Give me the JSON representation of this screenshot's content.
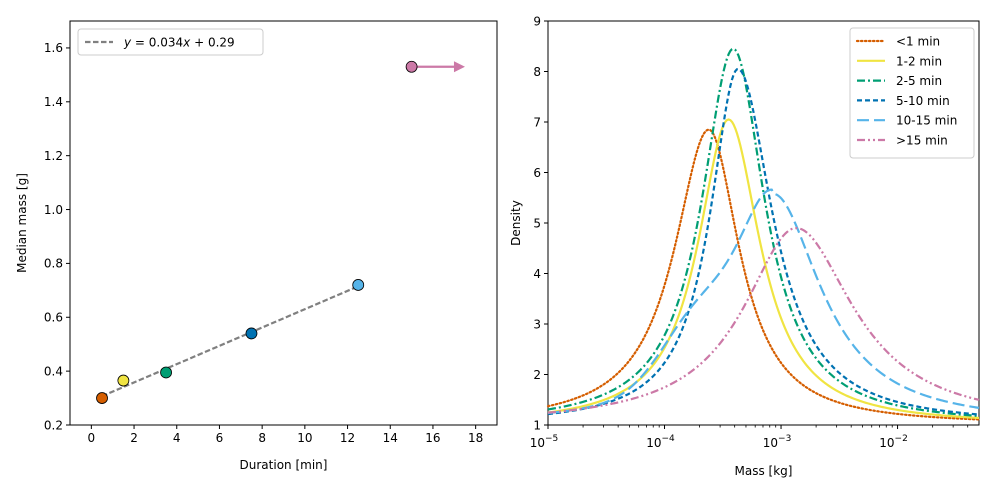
{
  "chart_data": [
    {
      "type": "scatter",
      "xlabel": "Duration [min]",
      "ylabel": "Median mass [g]",
      "xlim": [
        -1,
        19
      ],
      "ylim": [
        0.2,
        1.7
      ],
      "xticks": [
        0,
        2,
        4,
        6,
        8,
        10,
        12,
        14,
        16,
        18
      ],
      "yticks": [
        0.2,
        0.4,
        0.6,
        0.8,
        1.0,
        1.2,
        1.4,
        1.6
      ],
      "xtick_labels": [
        "0",
        "2",
        "4",
        "6",
        "8",
        "10",
        "12",
        "14",
        "16",
        "18"
      ],
      "ytick_labels": [
        "0.2",
        "0.4",
        "0.6",
        "0.8",
        "1.0",
        "1.2",
        "1.4",
        "1.6"
      ],
      "points": [
        {
          "x": 0.5,
          "y": 0.3,
          "color": "#d55e00"
        },
        {
          "x": 1.5,
          "y": 0.365,
          "color": "#f0e442"
        },
        {
          "x": 3.5,
          "y": 0.395,
          "color": "#009e73"
        },
        {
          "x": 7.5,
          "y": 0.54,
          "color": "#0072b2"
        },
        {
          "x": 12.5,
          "y": 0.72,
          "color": "#56b4e9"
        },
        {
          "x": 15.0,
          "y": 1.53,
          "color": "#cc79a7"
        }
      ],
      "arrow": {
        "from_x": 15.0,
        "to_x": 17.5,
        "y": 1.53,
        "color": "#cc79a7"
      },
      "fit": {
        "slope": 0.034,
        "intercept": 0.29,
        "x_range": [
          0.5,
          12.5
        ],
        "color": "#808080",
        "label": "y = 0.034x + 0.29",
        "label_prefix": "y",
        "label_rest": " = 0.034",
        "label_x": "x",
        "label_tail": " + 0.29"
      },
      "legend": "top-left"
    },
    {
      "type": "line",
      "xscale": "log",
      "xlabel": "Mass [kg]",
      "ylabel": "Density",
      "xlim": [
        1e-05,
        0.05
      ],
      "ylim": [
        1,
        9
      ],
      "yticks": [
        1,
        2,
        3,
        4,
        5,
        6,
        7,
        8,
        9
      ],
      "ytick_labels": [
        "1",
        "2",
        "3",
        "4",
        "5",
        "6",
        "7",
        "8",
        "9"
      ],
      "xticks_major": [
        1e-05,
        0.0001,
        0.001,
        0.01
      ],
      "xtick_labels": [
        {
          "base": "10",
          "exp": "−5"
        },
        {
          "base": "10",
          "exp": "−4"
        },
        {
          "base": "10",
          "exp": "−3"
        },
        {
          "base": "10",
          "exp": "−2"
        }
      ],
      "series": [
        {
          "name": "<1 min",
          "color": "#d55e00",
          "dash": "1.5,2.5",
          "lc": "round",
          "peak_log10": -3.62,
          "peak_y": 6.85,
          "sigma_left": 0.36,
          "sigma_right": 0.32
        },
        {
          "name": "1-2 min",
          "color": "#f0e442",
          "dash": "",
          "lc": "butt",
          "peak_log10": -3.45,
          "peak_y": 7.05,
          "sigma_left": 0.32,
          "sigma_right": 0.33
        },
        {
          "name": "2-5 min",
          "color": "#009e73",
          "dash": "8,3,2,3",
          "lc": "butt",
          "peak_log10": -3.41,
          "peak_y": 8.45,
          "sigma_left": 0.33,
          "sigma_right": 0.33
        },
        {
          "name": "5-10 min",
          "color": "#0072b2",
          "dash": "5,3",
          "lc": "butt",
          "peak_log10": -3.37,
          "peak_y": 8.05,
          "sigma_left": 0.29,
          "sigma_right": 0.36
        },
        {
          "name": "10-15 min",
          "color": "#56b4e9",
          "dash": "12,5",
          "lc": "butt",
          "peak_log10": -3.07,
          "peak_y": 5.58,
          "sigma_left": 0.45,
          "sigma_right": 0.5,
          "shoulder": {
            "log10": -3.75,
            "y": 1.0,
            "sigma": 0.3
          }
        },
        {
          "name": ">15 min",
          "color": "#cc79a7",
          "dash": "8,3,2,3,2,3",
          "lc": "butt",
          "peak_log10": -2.87,
          "peak_y": 4.9,
          "sigma_left": 0.55,
          "sigma_right": 0.6
        }
      ],
      "legend": "top-right"
    }
  ]
}
